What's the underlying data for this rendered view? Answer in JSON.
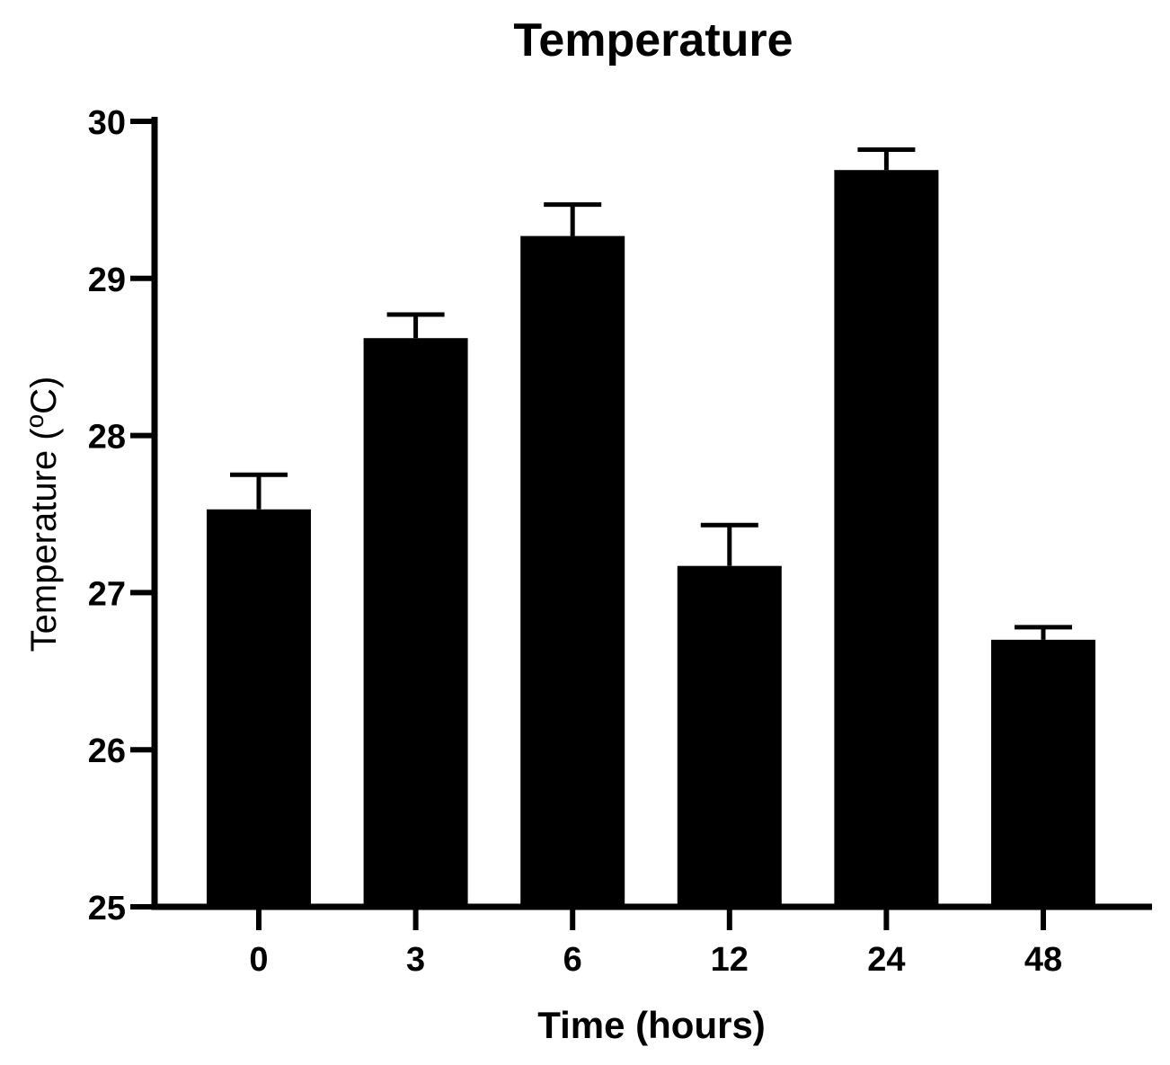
{
  "chart_data": {
    "type": "bar",
    "title": "Temperature",
    "xlabel": "Time (hours)",
    "ylabel_prefix": "Temperature (",
    "ylabel_superscript": "o",
    "ylabel_suffix": "C)",
    "categories": [
      "0",
      "3",
      "6",
      "12",
      "24",
      "48"
    ],
    "values": [
      27.53,
      28.62,
      29.27,
      27.17,
      29.69,
      26.7
    ],
    "error_upper": [
      0.22,
      0.15,
      0.2,
      0.26,
      0.13,
      0.08
    ],
    "ylim": [
      25,
      30
    ],
    "yticks": [
      "25",
      "26",
      "27",
      "28",
      "29",
      "30"
    ],
    "grid": false,
    "legend": "none",
    "bar_color": "#000000"
  }
}
